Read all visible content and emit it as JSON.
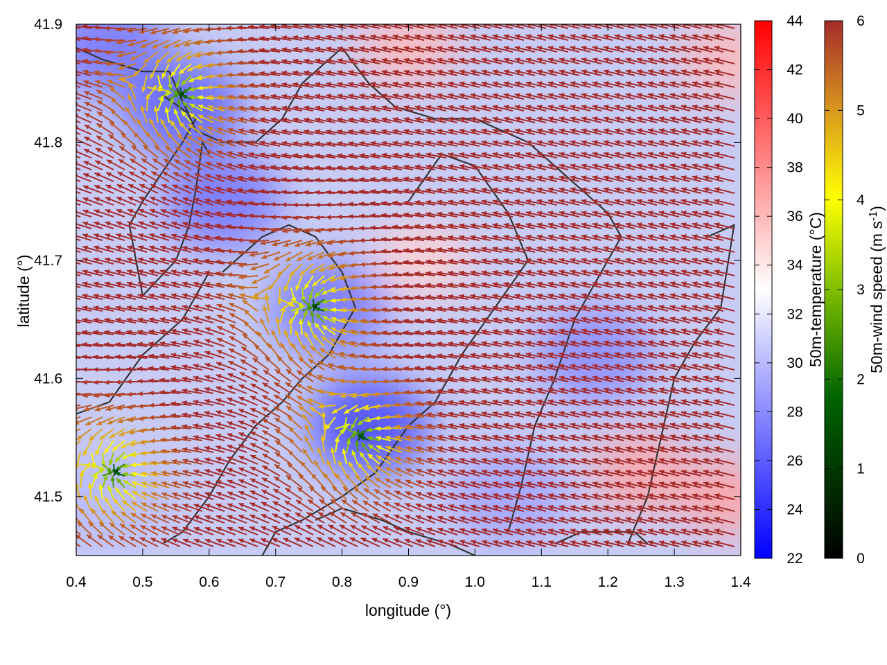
{
  "chart_data": {
    "type": "heatmap",
    "title": "",
    "xlabel": "longitude (°)",
    "ylabel": "latitude (°)",
    "xlim": [
      0.4,
      1.4
    ],
    "ylim": [
      41.45,
      41.9
    ],
    "x_ticks": [
      "0.4",
      "0.5",
      "0.6",
      "0.7",
      "0.8",
      "0.9",
      "1.0",
      "1.1",
      "1.2",
      "1.3",
      "1.4"
    ],
    "y_ticks": [
      "41.5",
      "41.6",
      "41.7",
      "41.8",
      "41.9"
    ],
    "grid": false,
    "temperature_colorbar": {
      "label": "50m-temperature (°C)",
      "range": [
        22,
        44
      ],
      "ticks": [
        "22",
        "24",
        "26",
        "28",
        "30",
        "32",
        "34",
        "36",
        "38",
        "40",
        "42",
        "44"
      ],
      "colors": [
        "#0000ff",
        "#ffffff",
        "#ff0000"
      ]
    },
    "wind_colorbar": {
      "label_main": "50m-wind speed (m s",
      "label_sup": "-1",
      "label_end": ")",
      "range": [
        0,
        6
      ],
      "ticks": [
        "0",
        "1",
        "2",
        "3",
        "4",
        "5",
        "6"
      ],
      "colors": [
        "#000000",
        "#006400",
        "#7fbf00",
        "#ffff00",
        "#d99a1e",
        "#a52a2a"
      ]
    },
    "cool_spots": [
      {
        "lon": 0.56,
        "lat": 41.83,
        "temp": 26
      },
      {
        "lon": 0.84,
        "lat": 41.56,
        "temp": 25
      },
      {
        "lon": 0.78,
        "lat": 41.66,
        "temp": 27
      },
      {
        "lon": 0.62,
        "lat": 41.75,
        "temp": 27
      },
      {
        "lon": 0.45,
        "lat": 41.88,
        "temp": 27
      },
      {
        "lon": 1.18,
        "lat": 41.62,
        "temp": 28
      },
      {
        "lon": 1.05,
        "lat": 41.5,
        "temp": 29
      },
      {
        "lon": 0.45,
        "lat": 41.5,
        "temp": 30
      }
    ],
    "warm_spots": [
      {
        "lon": 1.38,
        "lat": 41.87,
        "temp": 36
      },
      {
        "lon": 1.25,
        "lat": 41.52,
        "temp": 37
      },
      {
        "lon": 1.38,
        "lat": 41.5,
        "temp": 37
      },
      {
        "lon": 0.9,
        "lat": 41.88,
        "temp": 36
      },
      {
        "lon": 0.92,
        "lat": 41.7,
        "temp": 35
      }
    ],
    "wind_convergence_centers": [
      {
        "lon": 0.56,
        "lat": 41.84
      },
      {
        "lon": 0.83,
        "lat": 41.55
      },
      {
        "lon": 0.76,
        "lat": 41.66
      },
      {
        "lon": 0.46,
        "lat": 41.52
      }
    ],
    "background_wind": {
      "u": -1.0,
      "v": 0.25,
      "speed": 6
    },
    "contours": [
      [
        [
          0.4,
          41.88
        ],
        [
          0.44,
          41.87
        ],
        [
          0.5,
          41.86
        ],
        [
          0.54,
          41.86
        ],
        [
          0.58,
          41.81
        ],
        [
          0.62,
          41.8
        ],
        [
          0.67,
          41.8
        ],
        [
          0.71,
          41.82
        ],
        [
          0.74,
          41.85
        ],
        [
          0.78,
          41.87
        ],
        [
          0.8,
          41.88
        ],
        [
          0.84,
          41.85
        ],
        [
          0.88,
          41.83
        ],
        [
          0.94,
          41.82
        ],
        [
          1.0,
          41.82
        ],
        [
          1.04,
          41.81
        ],
        [
          1.08,
          41.8
        ],
        [
          1.12,
          41.78
        ],
        [
          1.16,
          41.76
        ],
        [
          1.2,
          41.74
        ],
        [
          1.22,
          41.72
        ],
        [
          1.19,
          41.69
        ],
        [
          1.15,
          41.65
        ],
        [
          1.12,
          41.6
        ],
        [
          1.09,
          41.56
        ],
        [
          1.07,
          41.51
        ],
        [
          1.05,
          41.47
        ]
      ],
      [
        [
          0.53,
          41.84
        ],
        [
          0.58,
          41.82
        ],
        [
          0.56,
          41.8
        ],
        [
          0.5,
          41.75
        ],
        [
          0.48,
          41.73
        ],
        [
          0.5,
          41.67
        ],
        [
          0.55,
          41.7
        ],
        [
          0.57,
          41.73
        ],
        [
          0.58,
          41.76
        ],
        [
          0.59,
          41.8
        ],
        [
          0.6,
          41.79
        ]
      ],
      [
        [
          0.9,
          41.75
        ],
        [
          0.95,
          41.79
        ],
        [
          1.0,
          41.78
        ],
        [
          1.05,
          41.74
        ],
        [
          1.08,
          41.7
        ],
        [
          1.03,
          41.66
        ],
        [
          0.98,
          41.62
        ],
        [
          0.94,
          41.58
        ],
        [
          0.9,
          41.56
        ],
        [
          0.85,
          41.52
        ],
        [
          0.8,
          41.5
        ],
        [
          0.74,
          41.48
        ],
        [
          0.7,
          41.47
        ],
        [
          0.68,
          41.45
        ]
      ],
      [
        [
          0.62,
          41.69
        ],
        [
          0.68,
          41.72
        ],
        [
          0.72,
          41.73
        ],
        [
          0.76,
          41.72
        ],
        [
          0.8,
          41.69
        ],
        [
          0.82,
          41.66
        ],
        [
          0.78,
          41.62
        ],
        [
          0.74,
          41.6
        ],
        [
          0.71,
          41.58
        ],
        [
          0.67,
          41.56
        ],
        [
          0.63,
          41.53
        ],
        [
          0.6,
          41.5
        ],
        [
          0.56,
          41.47
        ],
        [
          0.53,
          41.46
        ]
      ],
      [
        [
          1.35,
          41.72
        ],
        [
          1.39,
          41.73
        ],
        [
          1.37,
          41.66
        ],
        [
          1.33,
          41.63
        ],
        [
          1.3,
          41.6
        ],
        [
          1.28,
          41.55
        ],
        [
          1.26,
          41.5
        ],
        [
          1.23,
          41.46
        ]
      ],
      [
        [
          0.4,
          41.57
        ],
        [
          0.45,
          41.58
        ],
        [
          0.5,
          41.62
        ],
        [
          0.56,
          41.65
        ],
        [
          0.6,
          41.69
        ]
      ],
      [
        [
          0.76,
          41.48
        ],
        [
          0.8,
          41.49
        ],
        [
          0.86,
          41.48
        ],
        [
          0.9,
          41.47
        ],
        [
          0.96,
          41.46
        ],
        [
          1.0,
          41.45
        ]
      ],
      [
        [
          1.12,
          41.46
        ],
        [
          1.16,
          41.47
        ],
        [
          1.2,
          41.47
        ],
        [
          1.24,
          41.47
        ],
        [
          1.26,
          41.46
        ]
      ]
    ]
  }
}
